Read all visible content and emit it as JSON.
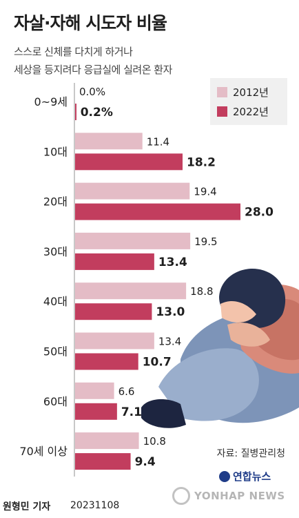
{
  "title": "자살·자해 시도자 비율",
  "subtitle_line1": "스스로 신체를 다치게 하거나",
  "subtitle_line2": "세상을 등지려다 응급실에 실려온 환자",
  "source": "자료: 질병관리청",
  "brand": "연합뉴스",
  "watermark": "YONHAP NEWS",
  "author": "원형민 기자",
  "date": "20231108",
  "colors": {
    "series2012": "#e4bcc6",
    "series2022": "#c23d5e",
    "axis": "#c8c8c8"
  },
  "chart_data": {
    "type": "bar",
    "orientation": "horizontal",
    "title": "자살·자해 시도자 비율",
    "categories": [
      "0~9세",
      "10대",
      "20대",
      "30대",
      "40대",
      "50대",
      "60대",
      "70세 이상"
    ],
    "series": [
      {
        "name": "2012년",
        "values": [
          0.0,
          11.4,
          19.4,
          19.5,
          18.8,
          13.4,
          6.6,
          10.8
        ],
        "labels": [
          "0.0%",
          "11.4",
          "19.4",
          "19.5",
          "18.8",
          "13.4",
          "6.6",
          "10.8"
        ]
      },
      {
        "name": "2022년",
        "values": [
          0.2,
          18.2,
          28.0,
          13.4,
          13.0,
          10.7,
          7.1,
          9.4
        ],
        "labels": [
          "0.2%",
          "18.2",
          "28.0",
          "13.4",
          "13.0",
          "10.7",
          "7.1",
          "9.4"
        ]
      }
    ],
    "xlim": [
      0,
      28.0
    ],
    "legend_position": "top-right",
    "grid": false
  }
}
